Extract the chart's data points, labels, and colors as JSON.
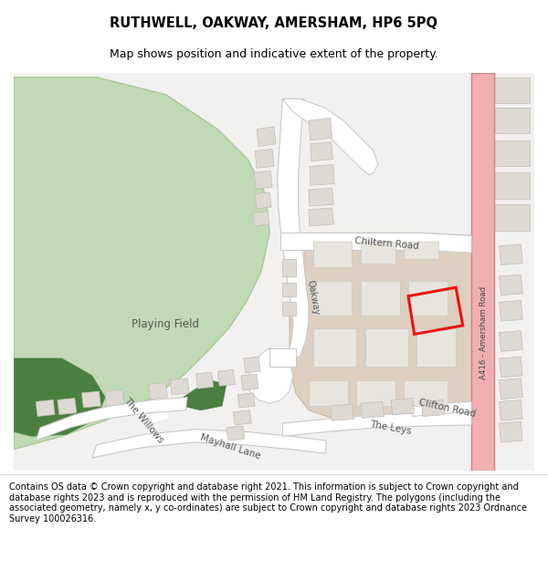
{
  "title": "RUTHWELL, OAKWAY, AMERSHAM, HP6 5PQ",
  "subtitle": "Map shows position and indicative extent of the property.",
  "footer": "Contains OS data © Crown copyright and database right 2021. This information is subject to Crown copyright and database rights 2023 and is reproduced with the permission of HM Land Registry. The polygons (including the associated geometry, namely x, y co-ordinates) are subject to Crown copyright and database rights 2023 Ordnance Survey 100026316.",
  "bg_color": "#f2f1ef",
  "road_color": "#ffffff",
  "road_outline": "#c8c8c8",
  "building_fill": "#dedad3",
  "building_outline": "#c0bcb5",
  "green_light": "#c2d9b5",
  "green_dark": "#4a8040",
  "school_fill": "#ddd0c0",
  "road_a_color": "#f0b0b0",
  "road_a_outline": "#d08080",
  "plot_color": "#ee1111",
  "label_color": "#555555"
}
